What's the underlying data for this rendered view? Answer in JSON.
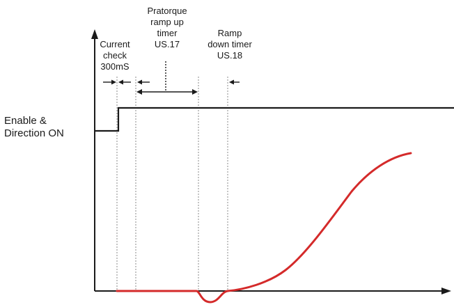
{
  "labels": {
    "current_check": [
      "Current",
      "check",
      "300mS"
    ],
    "pretorque": [
      "Pratorque",
      "ramp up",
      "timer",
      "US.17"
    ],
    "ramp_down": [
      "Ramp",
      "down timer",
      "US.18"
    ],
    "enable_direction": [
      "Enable &",
      "Direction ON"
    ]
  },
  "colors": {
    "curve": "#d42a2a",
    "lines": "#1a1a1a",
    "guides": "#8a8a8a"
  }
}
